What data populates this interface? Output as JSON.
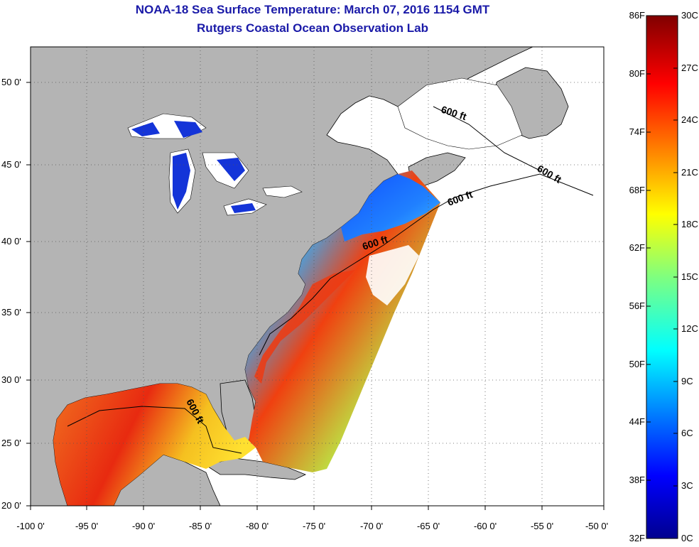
{
  "title": "NOAA-18 Sea Surface Temperature:  March 07, 2016 1154 GMT",
  "subtitle": "Rutgers Coastal Ocean Observation Lab",
  "x_ticks": [
    "-100 0'",
    "-95 0'",
    "-90 0'",
    "-85 0'",
    "-80 0'",
    "-75 0'",
    "-70 0'",
    "-65 0'",
    "-60 0'",
    "-55 0'",
    "-50 0'"
  ],
  "y_ticks": [
    "50 0'",
    "45 0'",
    "40 0'",
    "35 0'",
    "30 0'",
    "25 0'",
    "20 0'"
  ],
  "colorbar": {
    "fahrenheit": [
      "86F",
      "80F",
      "74F",
      "68F",
      "62F",
      "56F",
      "50F",
      "44F",
      "38F",
      "32F"
    ],
    "celsius": [
      "30C",
      "27C",
      "24C",
      "21C",
      "18C",
      "15C",
      "12C",
      "9C",
      "6C",
      "3C",
      "0C"
    ]
  },
  "contour_labels": [
    "600 ft",
    "600 ft",
    "600 ft",
    "600 ft",
    "600 ft"
  ],
  "colors": {
    "land": "#b4b4b4",
    "title": "#1a1aa8"
  }
}
